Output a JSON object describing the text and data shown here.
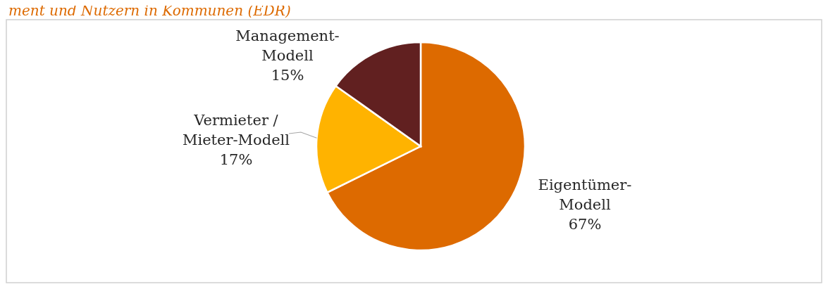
{
  "chart_data": {
    "type": "pie",
    "title": "ment und Nutzern in Kommunen (EDR)",
    "categories": [
      "Eigentümer-\nModell",
      "Vermieter /\nMieter-Modell",
      "Management-\nModell"
    ],
    "values": [
      67,
      17,
      15
    ],
    "colors": [
      "#dd6a00",
      "#ffb300",
      "#612020"
    ],
    "value_labels": [
      "67%",
      "17%",
      "15%"
    ],
    "legend": false
  }
}
